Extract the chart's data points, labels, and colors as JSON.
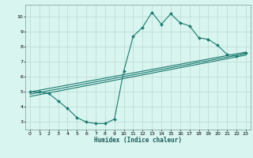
{
  "title": "",
  "xlabel": "Humidex (Indice chaleur)",
  "ylabel": "",
  "bg_color": "#d8f5f0",
  "grid_color": "#c0ddd8",
  "line_color": "#1a7a6e",
  "xlim": [
    -0.5,
    23.5
  ],
  "ylim": [
    2.5,
    10.8
  ],
  "xticks": [
    0,
    1,
    2,
    3,
    4,
    5,
    6,
    7,
    8,
    9,
    10,
    11,
    12,
    13,
    14,
    15,
    16,
    17,
    18,
    19,
    20,
    21,
    22,
    23
  ],
  "yticks": [
    3,
    4,
    5,
    6,
    7,
    8,
    9,
    10
  ],
  "line1_x": [
    0,
    1,
    2,
    3,
    4,
    5,
    6,
    7,
    8,
    9,
    10,
    11,
    12,
    13,
    14,
    15,
    16,
    17,
    18,
    19,
    20,
    21,
    22,
    23
  ],
  "line1_y": [
    5.0,
    5.0,
    4.9,
    4.4,
    3.9,
    3.3,
    3.0,
    2.9,
    2.9,
    3.2,
    6.4,
    8.7,
    9.3,
    10.3,
    9.5,
    10.2,
    9.6,
    9.4,
    8.6,
    8.5,
    8.1,
    7.5,
    7.4,
    7.6
  ],
  "line2_x": [
    0,
    23
  ],
  "line2_y": [
    5.0,
    7.65
  ],
  "line3_x": [
    0,
    23
  ],
  "line3_y": [
    4.85,
    7.55
  ],
  "line4_x": [
    0,
    23
  ],
  "line4_y": [
    4.7,
    7.45
  ]
}
